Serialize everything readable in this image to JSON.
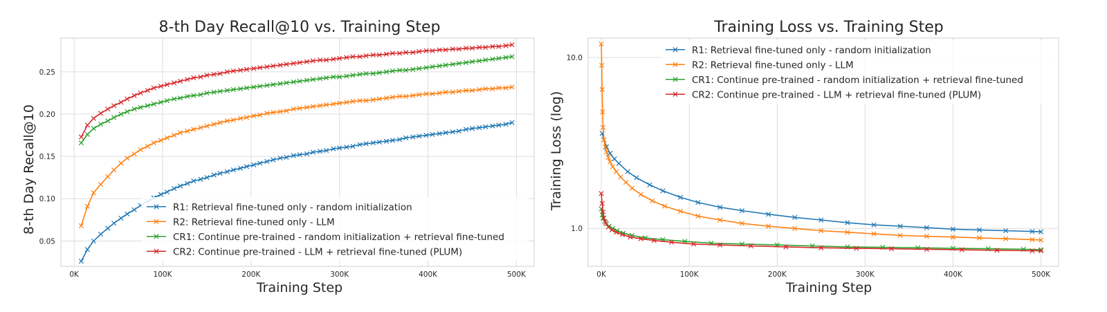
{
  "colors": {
    "R1": "#1f77b4",
    "R2": "#ff7f0e",
    "CR1": "#2ca02c",
    "CR2": "#d62728"
  },
  "chart_data": [
    {
      "type": "line",
      "title": "8-th Day Recall@10 vs. Training Step",
      "xlabel": "Training Step",
      "ylabel": "8-th Day Recall@10",
      "xlim": [
        -15000,
        520000
      ],
      "ylim": [
        0.02,
        0.29
      ],
      "yscale": "linear",
      "grid": true,
      "legend_position": "lower-right",
      "xticks": [
        0,
        100000,
        200000,
        300000,
        400000,
        500000
      ],
      "xtick_labels": [
        "0K",
        "100K",
        "200K",
        "300K",
        "400K",
        "500K"
      ],
      "yticks": [
        0.05,
        0.1,
        0.15,
        0.2,
        0.25
      ],
      "ytick_labels": [
        "0.05",
        "0.10",
        "0.15",
        "0.20",
        "0.25"
      ],
      "x": [
        8000,
        15000,
        22000,
        30000,
        38000,
        45000,
        53000,
        60000,
        68000,
        75000,
        83000,
        90000,
        98000,
        105000,
        113000,
        120000,
        128000,
        135000,
        143000,
        150000,
        158000,
        165000,
        173000,
        180000,
        188000,
        195000,
        203000,
        210000,
        218000,
        225000,
        233000,
        240000,
        248000,
        255000,
        263000,
        270000,
        278000,
        285000,
        293000,
        300000,
        308000,
        315000,
        323000,
        330000,
        338000,
        345000,
        353000,
        360000,
        368000,
        375000,
        383000,
        390000,
        398000,
        405000,
        413000,
        420000,
        428000,
        435000,
        443000,
        450000,
        458000,
        465000,
        473000,
        480000,
        488000,
        495000
      ],
      "series": [
        {
          "key": "R1",
          "name": "R1: Retrieval fine-tuned only - random initialization",
          "values": [
            0.026,
            0.04,
            0.05,
            0.058,
            0.065,
            0.071,
            0.077,
            0.082,
            0.087,
            0.092,
            0.097,
            0.101,
            0.105,
            0.108,
            0.112,
            0.115,
            0.118,
            0.121,
            0.123,
            0.125,
            0.128,
            0.13,
            0.132,
            0.134,
            0.136,
            0.138,
            0.14,
            0.142,
            0.144,
            0.146,
            0.148,
            0.149,
            0.151,
            0.152,
            0.153,
            0.155,
            0.156,
            0.157,
            0.159,
            0.16,
            0.161,
            0.162,
            0.164,
            0.165,
            0.166,
            0.167,
            0.168,
            0.169,
            0.17,
            0.172,
            0.173,
            0.174,
            0.175,
            0.176,
            0.177,
            0.178,
            0.179,
            0.18,
            0.182,
            0.183,
            0.184,
            0.185,
            0.186,
            0.187,
            0.188,
            0.19
          ]
        },
        {
          "key": "R2",
          "name": "R2: Retrieval fine-tuned only - LLM",
          "values": [
            0.068,
            0.091,
            0.107,
            0.117,
            0.126,
            0.134,
            0.142,
            0.148,
            0.153,
            0.158,
            0.162,
            0.166,
            0.169,
            0.172,
            0.175,
            0.178,
            0.18,
            0.182,
            0.184,
            0.186,
            0.188,
            0.19,
            0.192,
            0.193,
            0.195,
            0.196,
            0.198,
            0.199,
            0.201,
            0.202,
            0.203,
            0.204,
            0.206,
            0.207,
            0.208,
            0.209,
            0.21,
            0.211,
            0.212,
            0.213,
            0.214,
            0.215,
            0.216,
            0.216,
            0.217,
            0.218,
            0.219,
            0.22,
            0.221,
            0.221,
            0.222,
            0.223,
            0.224,
            0.224,
            0.225,
            0.226,
            0.226,
            0.227,
            0.228,
            0.228,
            0.229,
            0.23,
            0.23,
            0.231,
            0.231,
            0.232
          ]
        },
        {
          "key": "CR1",
          "name": "CR1: Continue pre-trained - random initialization + retrieval fine-tuned",
          "values": [
            0.166,
            0.176,
            0.183,
            0.188,
            0.192,
            0.196,
            0.2,
            0.203,
            0.206,
            0.208,
            0.21,
            0.212,
            0.214,
            0.216,
            0.218,
            0.219,
            0.221,
            0.222,
            0.223,
            0.225,
            0.226,
            0.227,
            0.228,
            0.229,
            0.23,
            0.231,
            0.232,
            0.233,
            0.234,
            0.235,
            0.236,
            0.237,
            0.238,
            0.239,
            0.24,
            0.241,
            0.242,
            0.243,
            0.244,
            0.244,
            0.245,
            0.246,
            0.247,
            0.248,
            0.248,
            0.249,
            0.25,
            0.251,
            0.252,
            0.252,
            0.253,
            0.254,
            0.255,
            0.256,
            0.257,
            0.258,
            0.259,
            0.26,
            0.261,
            0.262,
            0.263,
            0.264,
            0.265,
            0.266,
            0.267,
            0.268
          ]
        },
        {
          "key": "CR2",
          "name": "CR2: Continue pre-trained - LLM + retrieval fine-tuned (PLUM)",
          "values": [
            0.173,
            0.187,
            0.195,
            0.201,
            0.206,
            0.21,
            0.214,
            0.218,
            0.222,
            0.225,
            0.228,
            0.231,
            0.233,
            0.235,
            0.237,
            0.239,
            0.241,
            0.243,
            0.244,
            0.246,
            0.247,
            0.248,
            0.25,
            0.251,
            0.252,
            0.253,
            0.254,
            0.255,
            0.256,
            0.257,
            0.258,
            0.259,
            0.26,
            0.261,
            0.262,
            0.263,
            0.264,
            0.264,
            0.265,
            0.266,
            0.267,
            0.268,
            0.268,
            0.269,
            0.27,
            0.27,
            0.271,
            0.272,
            0.272,
            0.273,
            0.273,
            0.274,
            0.275,
            0.275,
            0.276,
            0.276,
            0.277,
            0.277,
            0.278,
            0.278,
            0.279,
            0.279,
            0.28,
            0.28,
            0.281,
            0.282
          ]
        }
      ]
    },
    {
      "type": "line",
      "title": "Training Loss vs. Training Step",
      "xlabel": "Training Step",
      "ylabel": "Training Loss (log)",
      "xlim": [
        -15000,
        520000
      ],
      "ylim": [
        0.6,
        13
      ],
      "yscale": "log",
      "grid": true,
      "legend_position": "top-center",
      "xticks": [
        0,
        100000,
        200000,
        300000,
        400000,
        500000
      ],
      "xtick_labels": [
        "0K",
        "100K",
        "200K",
        "300K",
        "400K",
        "500K"
      ],
      "yticks": [
        1.0,
        10.0
      ],
      "ytick_labels": [
        "1.0",
        "10.0"
      ],
      "series": [
        {
          "key": "R1",
          "name": "R1: Retrieval fine-tuned only - random initialization",
          "x": [
            1000,
            3000,
            6000,
            10000,
            15000,
            20000,
            30000,
            40000,
            55000,
            70000,
            90000,
            110000,
            135000,
            160000,
            190000,
            220000,
            250000,
            280000,
            310000,
            340000,
            370000,
            400000,
            430000,
            460000,
            490000,
            500000
          ],
          "values": [
            3.6,
            3.3,
            3.0,
            2.75,
            2.55,
            2.4,
            2.15,
            1.98,
            1.8,
            1.66,
            1.52,
            1.42,
            1.33,
            1.27,
            1.21,
            1.16,
            1.12,
            1.08,
            1.05,
            1.03,
            1.01,
            0.99,
            0.98,
            0.97,
            0.96,
            0.955
          ]
        },
        {
          "key": "R2",
          "name": "R2: Retrieval fine-tuned only - LLM",
          "x": [
            0,
            500,
            1000,
            1500,
            2000,
            3000,
            4500,
            6000,
            8000,
            10000,
            13000,
            17000,
            22000,
            28000,
            35000,
            45000,
            58000,
            72000,
            90000,
            110000,
            135000,
            160000,
            190000,
            220000,
            250000,
            280000,
            310000,
            340000,
            370000,
            400000,
            430000,
            460000,
            490000,
            500000
          ],
          "values": [
            12.0,
            9.0,
            6.5,
            4.8,
            3.9,
            3.3,
            3.0,
            2.8,
            2.6,
            2.45,
            2.3,
            2.15,
            2.0,
            1.86,
            1.72,
            1.58,
            1.45,
            1.35,
            1.26,
            1.18,
            1.12,
            1.07,
            1.03,
            1.0,
            0.97,
            0.95,
            0.93,
            0.91,
            0.9,
            0.89,
            0.88,
            0.87,
            0.86,
            0.855
          ]
        },
        {
          "key": "CR1",
          "name": "CR1: Continue pre-trained - random initialization + retrieval fine-tuned",
          "x": [
            0,
            1000,
            2000,
            4000,
            6000,
            9000,
            13000,
            18000,
            25000,
            35000,
            50000,
            70000,
            95000,
            125000,
            160000,
            200000,
            240000,
            280000,
            320000,
            360000,
            400000,
            440000,
            480000,
            500000
          ],
          "values": [
            1.3,
            1.2,
            1.15,
            1.1,
            1.06,
            1.03,
            1.0,
            0.97,
            0.94,
            0.91,
            0.88,
            0.86,
            0.84,
            0.82,
            0.81,
            0.8,
            0.79,
            0.78,
            0.775,
            0.77,
            0.765,
            0.76,
            0.755,
            0.75
          ]
        },
        {
          "key": "CR2",
          "name": "CR2: Continue pre-trained - LLM + retrieval fine-tuned (PLUM)",
          "x": [
            0,
            1000,
            2000,
            3000,
            5000,
            8000,
            12000,
            17000,
            24000,
            33000,
            45000,
            60000,
            80000,
            105000,
            135000,
            170000,
            210000,
            250000,
            290000,
            330000,
            370000,
            410000,
            450000,
            490000,
            500000
          ],
          "values": [
            1.6,
            1.4,
            1.25,
            1.15,
            1.08,
            1.02,
            0.98,
            0.95,
            0.92,
            0.89,
            0.87,
            0.85,
            0.83,
            0.81,
            0.8,
            0.79,
            0.78,
            0.77,
            0.765,
            0.76,
            0.755,
            0.75,
            0.745,
            0.74,
            0.74
          ]
        }
      ]
    }
  ]
}
